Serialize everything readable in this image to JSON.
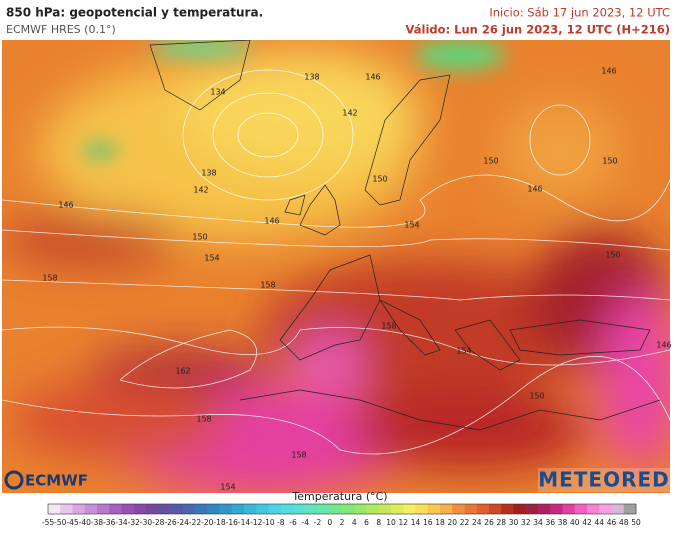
{
  "header": {
    "title": "850 hPa: geopotencial y temperatura.",
    "model": "ECMWF HRES (0.1°)",
    "init": "Inicio: Sáb 17 jun 2023, 12 UTC",
    "valid": "Válido: Lun 26 jun 2023, 12 UTC (H+216)"
  },
  "map": {
    "contour_labels": [
      134,
      138,
      146,
      142,
      138,
      142,
      146,
      150,
      146,
      150,
      154,
      154,
      150,
      146,
      150,
      146,
      158,
      158,
      150,
      158,
      154,
      162,
      150,
      158,
      158,
      154,
      146
    ]
  },
  "logos": {
    "left": "ECMWF",
    "right": "METEORED"
  },
  "colorbar": {
    "label": "Temperatura (°C)",
    "ticks": [
      -55,
      -50,
      -45,
      -40,
      -38,
      -36,
      -34,
      -32,
      -30,
      -28,
      -26,
      -24,
      -22,
      -20,
      -18,
      -16,
      -14,
      -12,
      -10,
      -8,
      -6,
      -4,
      -2,
      0,
      2,
      4,
      6,
      8,
      10,
      12,
      14,
      16,
      18,
      20,
      22,
      24,
      26,
      28,
      30,
      32,
      34,
      36,
      38,
      40,
      42,
      44,
      46,
      48,
      50
    ],
    "colors": [
      "#f5e6f5",
      "#e6c8ea",
      "#d8a8e0",
      "#c890d8",
      "#b878cc",
      "#a860c0",
      "#9850b4",
      "#8848a8",
      "#7848a0",
      "#6850a0",
      "#5858a8",
      "#4868b0",
      "#3878b8",
      "#3088c0",
      "#3098c8",
      "#30a8d0",
      "#38b8d8",
      "#40c8e0",
      "#48d4e4",
      "#50dce0",
      "#58e0d0",
      "#60e4c0",
      "#68e8a8",
      "#70e890",
      "#80e878",
      "#98e868",
      "#b0e860",
      "#c8e858",
      "#e0ec58",
      "#f4f060",
      "#f8e058",
      "#f8c850",
      "#f8b048",
      "#f09040",
      "#e87838",
      "#e06030",
      "#d04828",
      "#b83020",
      "#a02020",
      "#a02040",
      "#b02060",
      "#c82880",
      "#e040a0",
      "#f060c0",
      "#f880d0",
      "#f8a0e0",
      "#d8b8d8",
      "#a0a0a0"
    ]
  }
}
